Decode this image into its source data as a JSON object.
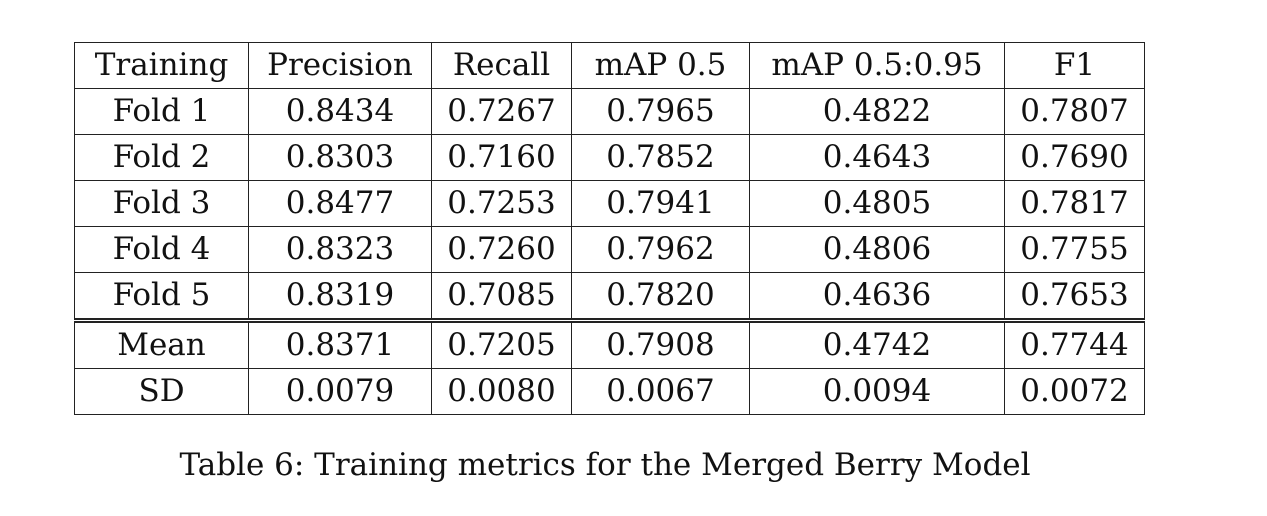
{
  "table": {
    "headers": [
      "Training",
      "Precision",
      "Recall",
      "mAP 0.5",
      "mAP 0.5:0.95",
      "F1"
    ],
    "rows": [
      [
        "Fold 1",
        "0.8434",
        "0.7267",
        "0.7965",
        "0.4822",
        "0.7807"
      ],
      [
        "Fold 2",
        "0.8303",
        "0.7160",
        "0.7852",
        "0.4643",
        "0.7690"
      ],
      [
        "Fold 3",
        "0.8477",
        "0.7253",
        "0.7941",
        "0.4805",
        "0.7817"
      ],
      [
        "Fold 4",
        "0.8323",
        "0.7260",
        "0.7962",
        "0.4806",
        "0.7755"
      ],
      [
        "Fold 5",
        "0.8319",
        "0.7085",
        "0.7820",
        "0.4636",
        "0.7653"
      ]
    ],
    "summary_rows": [
      [
        "Mean",
        "0.8371",
        "0.7205",
        "0.7908",
        "0.4742",
        "0.7744"
      ],
      [
        "SD",
        "0.0079",
        "0.0080",
        "0.0067",
        "0.0094",
        "0.0072"
      ]
    ]
  },
  "caption": "Table 6: Training metrics for the Merged Berry Model"
}
